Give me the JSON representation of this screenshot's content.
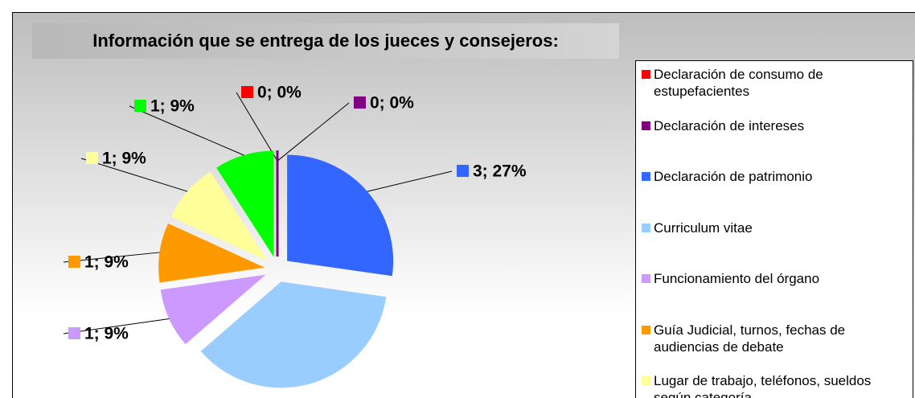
{
  "chart_data": {
    "type": "pie",
    "title": "Información que se entrega de los jueces y consejeros:",
    "categories": [
      "Declaración de consumo de estupefacientes",
      "Declaración de intereses",
      "Declaración de patrimonio",
      "Curriculum vitae",
      "Funcionamiento del órgano",
      "Guía Judicial, turnos, fechas de audiencias de debate",
      "Lugar de trabajo, teléfonos, sueldos según categoría",
      null
    ],
    "values": [
      0,
      0,
      3,
      4,
      1,
      1,
      1,
      1
    ],
    "value_labels": [
      "0; 0%",
      "0; 0%",
      "3; 27%",
      null,
      "1; 9%",
      "1; 9%",
      "1; 9%",
      "1; 9%"
    ],
    "colors": [
      "#ff0000",
      "#800080",
      "#3366ff",
      "#99ccff",
      "#cc99ff",
      "#ff9900",
      "#ffff99",
      "#00ff00"
    ],
    "legend": "right"
  }
}
